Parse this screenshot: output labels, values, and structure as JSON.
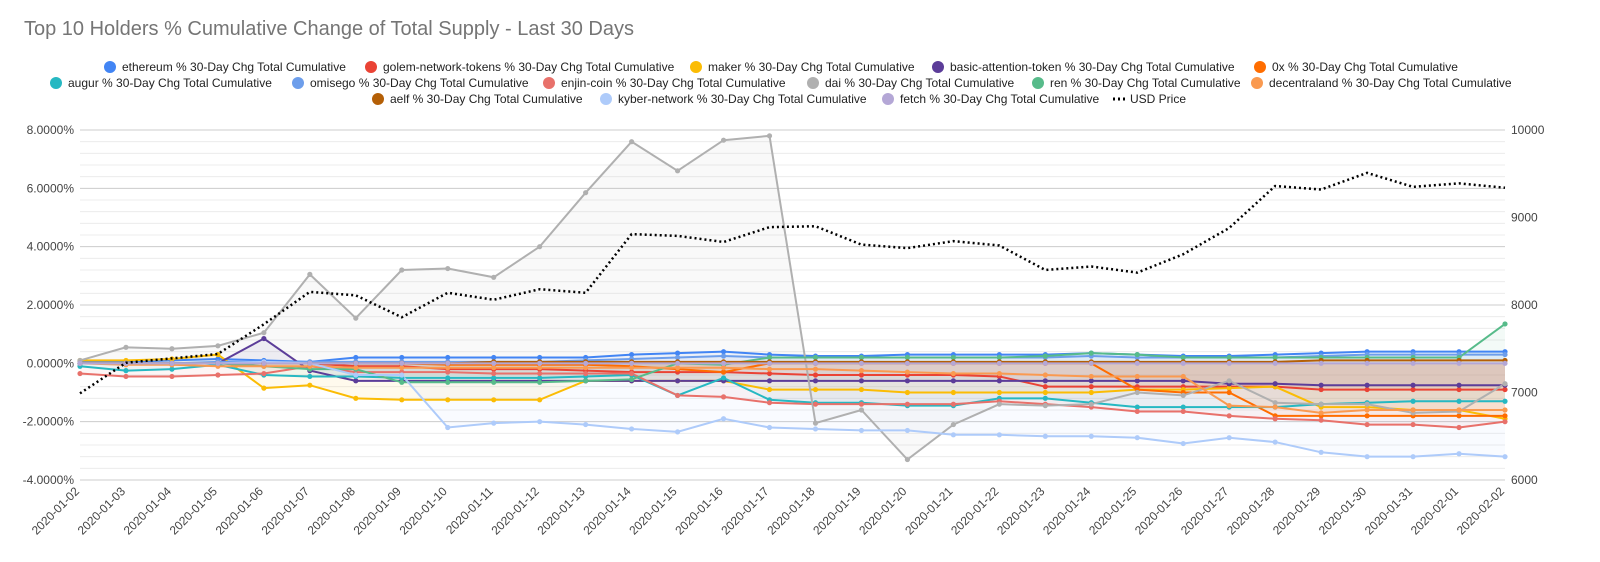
{
  "chart_data": {
    "type": "line",
    "title": "Top 10 Holders % Cumulative Change of Total Supply - Last 30 Days",
    "x": [
      "2020-01-02",
      "2020-01-03",
      "2020-01-04",
      "2020-01-05",
      "2020-01-06",
      "2020-01-07",
      "2020-01-08",
      "2020-01-09",
      "2020-01-10",
      "2020-01-11",
      "2020-01-12",
      "2020-01-13",
      "2020-01-14",
      "2020-01-15",
      "2020-01-16",
      "2020-01-17",
      "2020-01-18",
      "2020-01-19",
      "2020-01-20",
      "2020-01-21",
      "2020-01-22",
      "2020-01-23",
      "2020-01-24",
      "2020-01-25",
      "2020-01-26",
      "2020-01-27",
      "2020-01-28",
      "2020-01-29",
      "2020-01-30",
      "2020-01-31",
      "2020-02-01",
      "2020-02-02"
    ],
    "ylim_left": [
      -4,
      8
    ],
    "ylim_right": [
      6000,
      10000
    ],
    "y_ticks_left": [
      "8.0000%",
      "6.0000%",
      "4.0000%",
      "2.0000%",
      "0.0000%",
      "-2.0000%",
      "-4.0000%"
    ],
    "y_ticks_right": [
      "10000",
      "9000",
      "8000",
      "7000",
      "6000"
    ],
    "grid": true,
    "legend_position": "top",
    "series": [
      {
        "name": "ethereum % 30-Day Chg Total Cumulative",
        "color": "#4285f4",
        "values": [
          0.05,
          0.05,
          0.1,
          0.15,
          0.1,
          0.05,
          0.2,
          0.2,
          0.2,
          0.2,
          0.2,
          0.2,
          0.3,
          0.35,
          0.4,
          0.3,
          0.25,
          0.25,
          0.3,
          0.3,
          0.3,
          0.3,
          0.35,
          0.3,
          0.25,
          0.25,
          0.3,
          0.35,
          0.4,
          0.4,
          0.4,
          0.4
        ]
      },
      {
        "name": "golem-network-tokens % 30-Day Chg Total Cumulative",
        "color": "#ea4335",
        "values": [
          0.0,
          0.0,
          0.0,
          0.0,
          0.0,
          0.0,
          -0.1,
          -0.1,
          -0.2,
          -0.2,
          -0.2,
          -0.25,
          -0.3,
          -0.3,
          -0.3,
          -0.35,
          -0.4,
          -0.4,
          -0.4,
          -0.4,
          -0.45,
          -0.8,
          -0.8,
          -0.8,
          -0.8,
          -0.8,
          -0.8,
          -0.9,
          -0.9,
          -0.9,
          -0.9,
          -0.9
        ]
      },
      {
        "name": "maker % 30-Day Chg Total Cumulative",
        "color": "#fbbc04",
        "values": [
          0.1,
          0.1,
          0.15,
          0.3,
          -0.85,
          -0.75,
          -1.2,
          -1.25,
          -1.25,
          -1.25,
          -1.25,
          -0.6,
          -0.6,
          -0.6,
          -0.6,
          -0.9,
          -0.9,
          -0.9,
          -1.0,
          -1.0,
          -1.0,
          -1.0,
          -1.0,
          -0.9,
          -0.9,
          -0.85,
          -0.8,
          -1.5,
          -1.5,
          -1.6,
          -1.6,
          -1.9
        ]
      },
      {
        "name": "basic-attention-token % 30-Day Chg Total Cumulative",
        "color": "#5c3d99",
        "values": [
          0.0,
          0.0,
          0.0,
          0.0,
          0.85,
          -0.25,
          -0.6,
          -0.6,
          -0.6,
          -0.6,
          -0.6,
          -0.6,
          -0.6,
          -0.6,
          -0.6,
          -0.6,
          -0.6,
          -0.6,
          -0.6,
          -0.6,
          -0.6,
          -0.6,
          -0.6,
          -0.6,
          -0.6,
          -0.7,
          -0.7,
          -0.75,
          -0.75,
          -0.75,
          -0.75,
          -0.75
        ]
      },
      {
        "name": "0x % 30-Day Chg Total Cumulative",
        "color": "#ff6d00",
        "values": [
          0.0,
          0.0,
          0.0,
          0.0,
          0.0,
          0.0,
          0.0,
          0.0,
          -0.05,
          -0.05,
          -0.05,
          -0.05,
          -0.1,
          -0.2,
          -0.3,
          0.0,
          0.0,
          0.0,
          0.0,
          0.0,
          0.0,
          0.0,
          0.0,
          -0.9,
          -1.0,
          -1.0,
          -1.8,
          -1.8,
          -1.8,
          -1.8,
          -1.8,
          -1.8
        ]
      },
      {
        "name": "augur % 30-Day Chg Total Cumulative",
        "color": "#26b8c2",
        "values": [
          -0.1,
          -0.25,
          -0.2,
          -0.05,
          -0.4,
          -0.45,
          -0.45,
          -0.5,
          -0.5,
          -0.5,
          -0.5,
          -0.45,
          -0.4,
          -1.1,
          -0.5,
          -1.25,
          -1.35,
          -1.35,
          -1.45,
          -1.45,
          -1.2,
          -1.2,
          -1.35,
          -1.5,
          -1.5,
          -1.5,
          -1.5,
          -1.4,
          -1.35,
          -1.3,
          -1.3,
          -1.3
        ]
      },
      {
        "name": "omisego % 30-Day Chg Total Cumulative",
        "color": "#6d9eeb",
        "values": [
          0.0,
          0.0,
          0.0,
          0.05,
          0.05,
          0.05,
          0.05,
          0.05,
          0.05,
          0.05,
          0.05,
          0.1,
          0.15,
          0.2,
          0.25,
          0.2,
          0.2,
          0.2,
          0.2,
          0.2,
          0.2,
          0.2,
          0.25,
          0.2,
          0.2,
          0.2,
          0.2,
          0.25,
          0.3,
          0.3,
          0.3,
          0.3
        ]
      },
      {
        "name": "enjin-coin % 30-Day Chg Total Cumulative",
        "color": "#e8716b",
        "values": [
          -0.35,
          -0.45,
          -0.45,
          -0.4,
          -0.35,
          -0.1,
          -0.3,
          -0.3,
          -0.3,
          -0.35,
          -0.35,
          -0.35,
          -0.35,
          -1.1,
          -1.15,
          -1.35,
          -1.4,
          -1.4,
          -1.4,
          -1.4,
          -1.3,
          -1.4,
          -1.5,
          -1.65,
          -1.65,
          -1.8,
          -1.9,
          -1.95,
          -2.1,
          -2.1,
          -2.2,
          -2.0
        ]
      },
      {
        "name": "dai % 30-Day Chg Total Cumulative",
        "color": "#b0b0b0",
        "values": [
          0.1,
          0.55,
          0.5,
          0.6,
          1.05,
          3.05,
          1.55,
          3.2,
          3.25,
          2.95,
          4.0,
          5.85,
          7.6,
          6.6,
          7.65,
          7.8,
          -2.05,
          -1.6,
          -3.3,
          -2.1,
          -1.4,
          -1.45,
          -1.4,
          -1.0,
          -1.1,
          -0.6,
          -1.35,
          -1.4,
          -1.4,
          -1.7,
          -1.65,
          -0.7
        ]
      },
      {
        "name": "ren % 30-Day Chg Total Cumulative",
        "color": "#57bb8a",
        "values": [
          0.0,
          0.0,
          0.0,
          0.0,
          -0.1,
          -0.2,
          -0.2,
          -0.65,
          -0.65,
          -0.65,
          -0.65,
          -0.6,
          -0.55,
          0.0,
          -0.05,
          0.2,
          0.2,
          0.2,
          0.2,
          0.2,
          0.2,
          0.25,
          0.35,
          0.3,
          0.2,
          0.2,
          0.2,
          0.2,
          0.2,
          0.2,
          0.2,
          1.35
        ]
      },
      {
        "name": "decentraland % 30-Day Chg Total Cumulative",
        "color": "#fa9a50",
        "values": [
          0.0,
          -0.05,
          -0.05,
          -0.1,
          -0.1,
          -0.1,
          -0.15,
          -0.15,
          -0.15,
          -0.15,
          -0.15,
          -0.15,
          -0.15,
          -0.15,
          -0.15,
          -0.2,
          -0.2,
          -0.25,
          -0.3,
          -0.35,
          -0.35,
          -0.4,
          -0.45,
          -0.45,
          -0.45,
          -1.45,
          -1.5,
          -1.7,
          -1.6,
          -1.6,
          -1.6,
          -1.6
        ]
      },
      {
        "name": "aelf % 30-Day Chg Total Cumulative",
        "color": "#b45f06",
        "values": [
          0.0,
          0.0,
          0.0,
          0.0,
          0.0,
          0.0,
          0.0,
          0.0,
          0.0,
          0.05,
          0.05,
          0.05,
          0.05,
          0.05,
          0.05,
          0.05,
          0.05,
          0.05,
          0.05,
          0.05,
          0.05,
          0.05,
          0.05,
          0.05,
          0.05,
          0.05,
          0.05,
          0.1,
          0.1,
          0.1,
          0.1,
          0.1
        ]
      },
      {
        "name": "kyber-network % 30-Day Chg Total Cumulative",
        "color": "#aecbfa",
        "values": [
          0.0,
          0.0,
          0.0,
          0.0,
          0.05,
          0.0,
          -0.4,
          -0.4,
          -2.2,
          -2.05,
          -2.0,
          -2.1,
          -2.25,
          -2.35,
          -1.9,
          -2.2,
          -2.25,
          -2.3,
          -2.3,
          -2.45,
          -2.45,
          -2.5,
          -2.5,
          -2.55,
          -2.75,
          -2.55,
          -2.7,
          -3.05,
          -3.2,
          -3.2,
          -3.1,
          -3.2
        ]
      },
      {
        "name": "fetch % 30-Day Chg Total Cumulative",
        "color": "#b4a7d6",
        "values": [
          0.0,
          0.0,
          0.0,
          0.0,
          0.0,
          0.0,
          0.0,
          0.0,
          0.0,
          0.0,
          0.0,
          0.0,
          0.0,
          0.0,
          0.0,
          0.0,
          0.0,
          0.0,
          0.0,
          0.0,
          0.0,
          0.0,
          0.0,
          0.0,
          0.0,
          0.0,
          0.0,
          0.0,
          0.0,
          0.0,
          0.0,
          0.0
        ]
      },
      {
        "name": "USD Price",
        "color": "#000000",
        "axis": "right",
        "style": "dotted",
        "values": [
          6990,
          7340,
          7390,
          7440,
          7780,
          8150,
          8110,
          7860,
          8140,
          8060,
          8180,
          8140,
          8810,
          8790,
          8720,
          8890,
          8900,
          8690,
          8650,
          8730,
          8680,
          8400,
          8440,
          8370,
          8580,
          8880,
          9360,
          9320,
          9510,
          9350,
          9390,
          9340
        ]
      }
    ]
  }
}
